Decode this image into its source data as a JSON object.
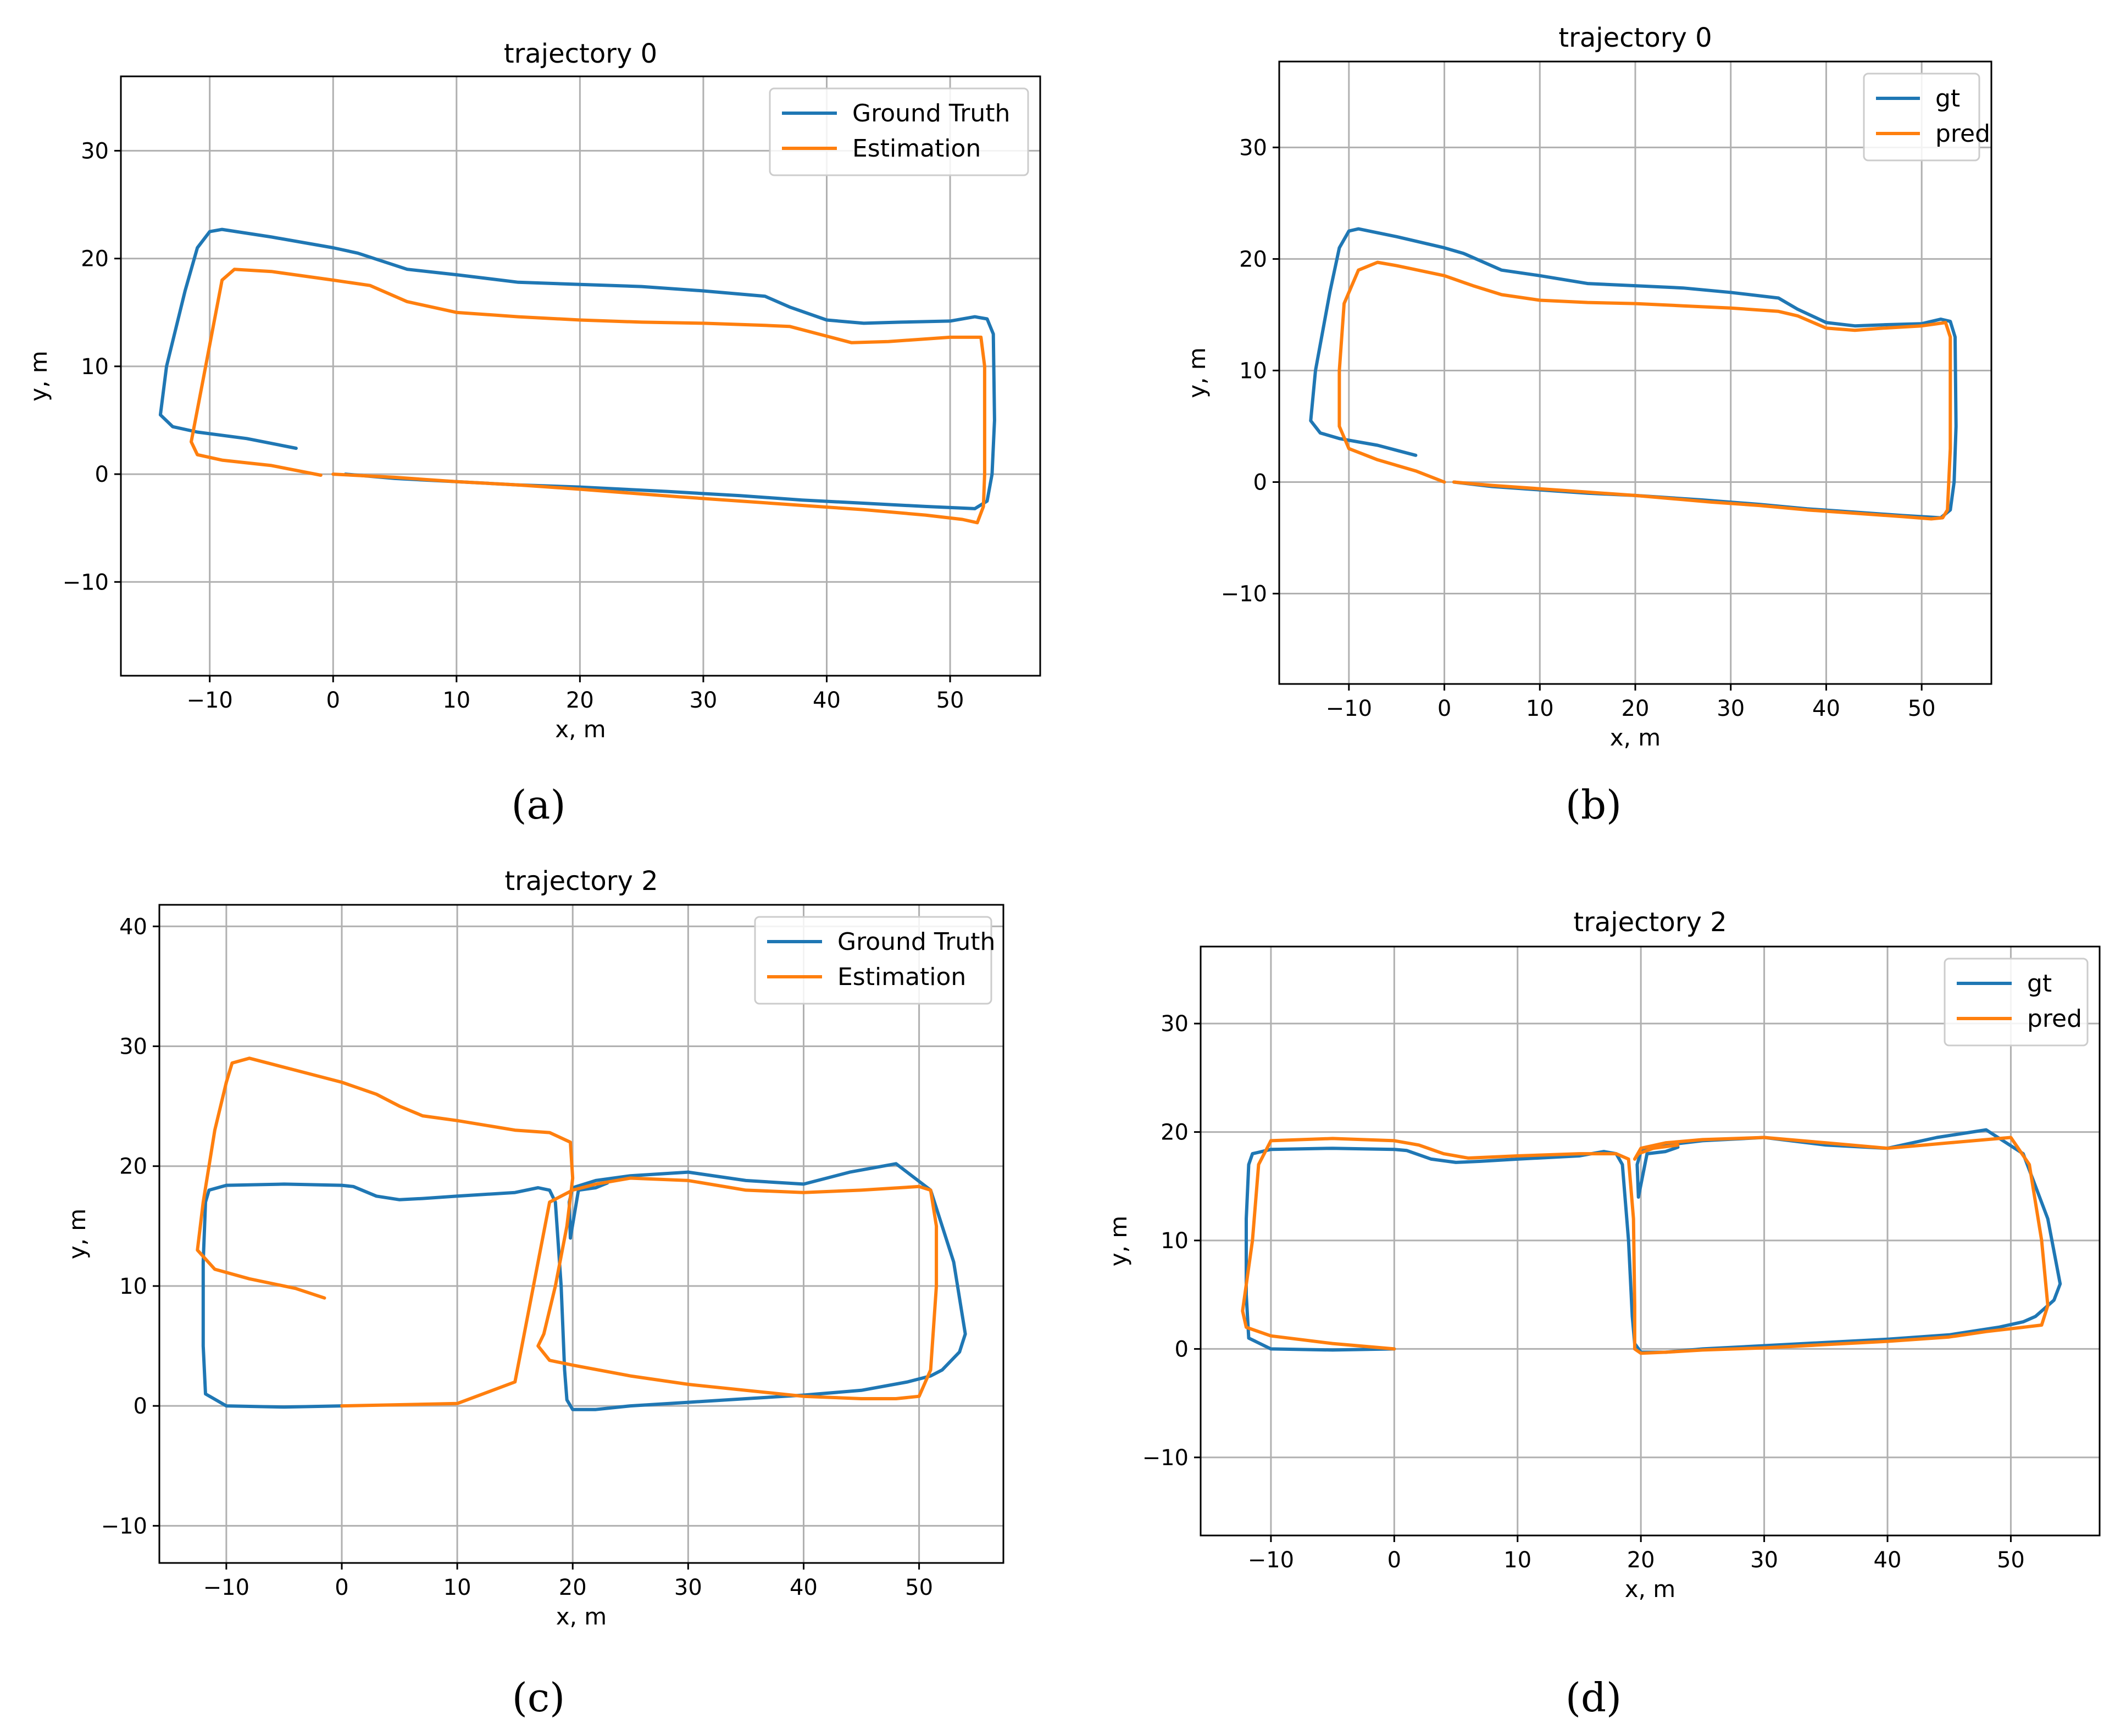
{
  "chart_data": [
    {
      "type": "line",
      "title": "trajectory 0",
      "xlabel": "x, m",
      "ylabel": "y, m",
      "xlim": [
        -17.2,
        57.3
      ],
      "ylim": [
        -18.7,
        36.9
      ],
      "xticks": [
        -10,
        0,
        10,
        20,
        30,
        40,
        50
      ],
      "yticks": [
        -10,
        0,
        10,
        20,
        30
      ],
      "grid": true,
      "legend_position": "top-right",
      "caption": "(a)",
      "series": [
        {
          "name": "Ground Truth",
          "color": "#1f77b4",
          "x": [
            -3,
            -7,
            -11,
            -13,
            -14,
            -13.5,
            -12,
            -11,
            -10,
            -9,
            -5,
            0,
            2,
            6,
            10,
            15,
            20,
            25,
            30,
            35,
            37,
            40,
            43,
            46,
            50,
            52,
            53,
            53.5,
            53.6,
            53.4,
            53,
            52,
            48,
            43,
            38,
            33,
            27,
            20,
            15,
            10,
            5,
            1
          ],
          "y": [
            2.4,
            3.3,
            3.9,
            4.4,
            5.5,
            10,
            17,
            21,
            22.5,
            22.7,
            22,
            21,
            20.5,
            19,
            18.5,
            17.8,
            17.6,
            17.4,
            17,
            16.5,
            15.5,
            14.3,
            14,
            14.1,
            14.2,
            14.6,
            14.4,
            13,
            5,
            0,
            -2.5,
            -3.2,
            -3,
            -2.7,
            -2.4,
            -2,
            -1.6,
            -1.2,
            -1,
            -0.7,
            -0.4,
            0
          ]
        },
        {
          "name": "Estimation",
          "color": "#ff7f0e",
          "x": [
            -1,
            -5,
            -9,
            -11,
            -11.5,
            -10.5,
            -9.5,
            -9,
            -8,
            -5,
            0,
            3,
            6,
            10,
            15,
            20,
            25,
            30,
            35,
            37,
            40,
            42,
            45,
            50,
            52.5,
            52.8,
            52.8,
            52.7,
            52.2,
            51,
            48,
            43,
            38,
            33,
            28,
            20,
            15,
            10,
            5,
            0
          ],
          "y": [
            -0.1,
            0.8,
            1.3,
            1.8,
            3,
            9,
            15,
            18,
            19,
            18.8,
            18,
            17.5,
            16,
            15,
            14.6,
            14.3,
            14.1,
            14,
            13.8,
            13.7,
            12.8,
            12.2,
            12.3,
            12.7,
            12.7,
            10,
            0,
            -3,
            -4.5,
            -4.2,
            -3.8,
            -3.3,
            -2.9,
            -2.5,
            -2.1,
            -1.4,
            -1,
            -0.7,
            -0.3,
            0
          ]
        }
      ]
    },
    {
      "type": "line",
      "title": "trajectory 0",
      "xlabel": "x, m",
      "ylabel": "y, m",
      "xlim": [
        -17.3,
        57.3
      ],
      "ylim": [
        -18.1,
        37.7
      ],
      "xticks": [
        -10,
        0,
        10,
        20,
        30,
        40,
        50
      ],
      "yticks": [
        -10,
        0,
        10,
        20,
        30
      ],
      "grid": true,
      "legend_position": "top-right",
      "caption": "(b)",
      "series": [
        {
          "name": "gt",
          "color": "#1f77b4",
          "x": [
            -3,
            -7,
            -11,
            -13,
            -14,
            -13.5,
            -12,
            -11,
            -10,
            -9,
            -5,
            0,
            2,
            6,
            10,
            15,
            20,
            25,
            30,
            35,
            37,
            40,
            43,
            46,
            50,
            52,
            53,
            53.5,
            53.6,
            53.4,
            53,
            52,
            48,
            43,
            38,
            33,
            27,
            20,
            15,
            10,
            5,
            1
          ],
          "y": [
            2.4,
            3.3,
            3.9,
            4.4,
            5.5,
            10,
            17,
            21,
            22.5,
            22.7,
            22,
            21,
            20.5,
            19,
            18.5,
            17.8,
            17.6,
            17.4,
            17,
            16.5,
            15.5,
            14.3,
            14,
            14.1,
            14.2,
            14.6,
            14.4,
            13,
            5,
            0,
            -2.5,
            -3.2,
            -3,
            -2.7,
            -2.4,
            -2,
            -1.6,
            -1.2,
            -1,
            -0.7,
            -0.4,
            0
          ]
        },
        {
          "name": "pred",
          "color": "#ff7f0e",
          "x": [
            0,
            -3,
            -7,
            -10,
            -11,
            -11,
            -10.5,
            -9,
            -7,
            -5,
            0,
            3,
            6,
            10,
            15,
            20,
            25,
            30,
            35,
            37,
            40,
            43,
            46,
            50,
            52.5,
            53,
            53,
            52.7,
            52.2,
            51,
            48,
            43,
            38,
            33,
            28,
            20,
            15,
            10,
            5,
            1
          ],
          "y": [
            0,
            1,
            2,
            3,
            5,
            10,
            16,
            19,
            19.7,
            19.4,
            18.5,
            17.6,
            16.8,
            16.3,
            16.1,
            16,
            15.8,
            15.6,
            15.3,
            14.9,
            13.8,
            13.6,
            13.8,
            14,
            14.3,
            13,
            3,
            -2.5,
            -3.2,
            -3.3,
            -3.1,
            -2.8,
            -2.5,
            -2.1,
            -1.8,
            -1.2,
            -0.9,
            -0.6,
            -0.3,
            0
          ]
        }
      ]
    },
    {
      "type": "line",
      "title": "trajectory 2",
      "xlabel": "x, m",
      "ylabel": "y, m",
      "xlim": [
        -15.8,
        57.3
      ],
      "ylim": [
        -13.1,
        41.8
      ],
      "xticks": [
        -10,
        0,
        10,
        20,
        30,
        40,
        50
      ],
      "yticks": [
        -10,
        0,
        10,
        20,
        30,
        40
      ],
      "grid": true,
      "legend_position": "top-right",
      "caption": "(c)",
      "series": [
        {
          "name": "Ground Truth",
          "color": "#1f77b4",
          "x": [
            0,
            -5,
            -10,
            -11.8,
            -12,
            -12,
            -11.8,
            -11.5,
            -10,
            -5,
            0,
            1,
            3,
            5,
            7,
            10,
            15,
            17,
            18,
            18.5,
            19,
            19.3,
            19.5,
            20,
            22,
            25,
            30,
            35,
            40,
            45,
            49,
            51,
            52,
            53.5,
            54,
            53,
            51,
            48,
            44,
            40,
            35,
            30,
            25,
            22,
            20,
            19.7,
            19.8,
            20.5,
            22,
            23
          ],
          "y": [
            0,
            -0.1,
            0,
            1,
            5,
            12,
            17,
            18,
            18.4,
            18.5,
            18.4,
            18.3,
            17.5,
            17.2,
            17.3,
            17.5,
            17.8,
            18.2,
            18,
            17,
            10,
            3,
            0.5,
            -0.3,
            -0.3,
            0,
            0.3,
            0.6,
            0.9,
            1.3,
            2,
            2.5,
            3,
            4.5,
            6,
            12,
            18,
            20.2,
            19.5,
            18.5,
            18.8,
            19.5,
            19.2,
            18.8,
            18.2,
            17,
            14,
            18,
            18.2,
            18.6
          ]
        },
        {
          "name": "Estimation",
          "color": "#ff7f0e",
          "x": [
            -1.5,
            -4,
            -8,
            -11,
            -12.5,
            -12,
            -11,
            -10,
            -9.5,
            -8,
            -6,
            -4,
            0,
            3,
            5,
            7,
            10,
            15,
            18,
            19.8,
            20,
            19.5,
            18.5,
            17.5,
            17,
            18,
            20,
            25,
            30,
            35,
            40,
            45,
            48,
            50,
            51,
            51.5,
            51.5,
            51,
            50,
            45,
            40,
            35,
            30,
            25,
            22,
            20,
            19,
            18,
            15,
            10,
            5,
            0
          ],
          "y": [
            9,
            9.8,
            10.6,
            11.4,
            13,
            17,
            23,
            27,
            28.6,
            29,
            28.5,
            28,
            27,
            26,
            25,
            24.2,
            23.8,
            23,
            22.8,
            22,
            19,
            15,
            10,
            6,
            5,
            3.8,
            3.4,
            2.5,
            1.8,
            1.3,
            0.8,
            0.6,
            0.6,
            0.8,
            3,
            10,
            15,
            18,
            18.3,
            18,
            17.8,
            18,
            18.8,
            19,
            18.5,
            18,
            17.5,
            17,
            2,
            0.2,
            0.1,
            0
          ]
        }
      ]
    },
    {
      "type": "line",
      "title": "trajectory 2",
      "xlabel": "x, m",
      "ylabel": "y, m",
      "xlim": [
        -15.7,
        57.2
      ],
      "ylim": [
        -17.2,
        37.1
      ],
      "xticks": [
        -10,
        0,
        10,
        20,
        30,
        40,
        50
      ],
      "yticks": [
        -10,
        0,
        10,
        20,
        30
      ],
      "grid": true,
      "legend_position": "top-right",
      "caption": "(d)",
      "series": [
        {
          "name": "gt",
          "color": "#1f77b4",
          "x": [
            0,
            -5,
            -10,
            -11.8,
            -12,
            -12,
            -11.8,
            -11.5,
            -10,
            -5,
            0,
            1,
            3,
            5,
            7,
            10,
            15,
            17,
            18,
            18.5,
            19,
            19.3,
            19.5,
            20,
            22,
            25,
            30,
            35,
            40,
            45,
            49,
            51,
            52,
            53.5,
            54,
            53,
            51,
            48,
            44,
            40,
            35,
            30,
            25,
            22,
            20,
            19.7,
            19.8,
            20.5,
            22,
            23
          ],
          "y": [
            0,
            -0.1,
            0,
            1,
            5,
            12,
            17,
            18,
            18.4,
            18.5,
            18.4,
            18.3,
            17.5,
            17.2,
            17.3,
            17.5,
            17.8,
            18.2,
            18,
            17,
            10,
            3,
            0.5,
            -0.3,
            -0.3,
            0,
            0.3,
            0.6,
            0.9,
            1.3,
            2,
            2.5,
            3,
            4.5,
            6,
            12,
            18,
            20.2,
            19.5,
            18.5,
            18.8,
            19.5,
            19.2,
            18.8,
            18.2,
            17,
            14,
            18,
            18.2,
            18.6
          ]
        },
        {
          "name": "pred",
          "color": "#ff7f0e",
          "x": [
            0,
            -5,
            -10,
            -12,
            -12.3,
            -11.5,
            -11,
            -10,
            -5,
            0,
            2,
            4,
            6,
            10,
            15,
            18,
            19,
            19.4,
            19.5,
            19.5,
            20,
            22,
            25,
            30,
            35,
            40,
            45,
            48,
            51,
            52.5,
            53,
            52.5,
            51.5,
            50,
            45,
            40,
            35,
            30,
            25,
            22,
            20,
            19.5,
            19.8,
            21,
            23
          ],
          "y": [
            0,
            0.5,
            1.2,
            2,
            3.5,
            10,
            17,
            19.2,
            19.4,
            19.2,
            18.8,
            18,
            17.6,
            17.8,
            18,
            18,
            17.5,
            12,
            4,
            0,
            -0.4,
            -0.3,
            -0.1,
            0.1,
            0.4,
            0.7,
            1.1,
            1.6,
            2,
            2.2,
            4,
            10,
            17,
            19.5,
            19,
            18.5,
            19,
            19.5,
            19.3,
            19,
            18.5,
            17.5,
            18,
            18.5,
            18.8
          ]
        }
      ]
    }
  ]
}
